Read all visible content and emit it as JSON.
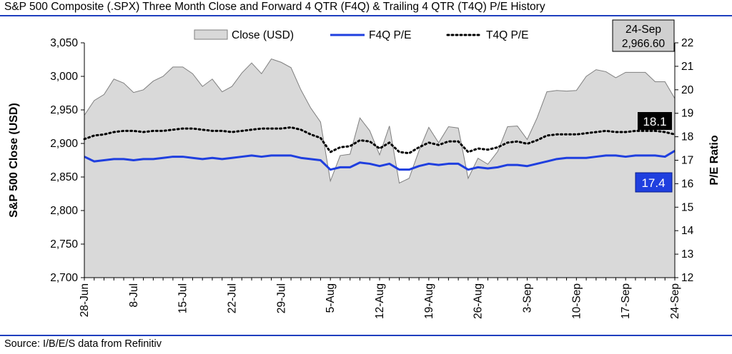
{
  "title": "S&P 500 Composite (.SPX) Three Month Close and Forward 4 QTR (F4Q) & Trailing 4 QTR (T4Q) P/E History",
  "source": "Source: I/B/E/S data from Refinitiv",
  "colors": {
    "close_fill": "#d9d9d9",
    "close_stroke": "#7f7f7f",
    "f4q": "#1f3fdf",
    "t4q": "#000000",
    "rule": "#1f3fbf"
  },
  "callouts": {
    "date_box": {
      "date": "24-Sep",
      "value": "2,966.60"
    },
    "t4q_label": "18.1",
    "f4q_label": "17.4"
  },
  "chart_data": {
    "type": "area+line",
    "xlabel": "",
    "ylabel": "S&P 500 Close (USD)",
    "y2label": "P/E Ratio",
    "ylim": [
      2700,
      3050
    ],
    "y_ticks": [
      2700,
      2750,
      2800,
      2850,
      2900,
      2950,
      3000,
      3050
    ],
    "y_tick_labels": [
      "2,700",
      "2,750",
      "2,800",
      "2,850",
      "2,900",
      "2,950",
      "3,000",
      "3,050"
    ],
    "y2lim": [
      12,
      22
    ],
    "y2_ticks": [
      12,
      13,
      14,
      15,
      16,
      17,
      18,
      19,
      20,
      21,
      22
    ],
    "x_ticks": [
      "28-Jun",
      "8-Jul",
      "15-Jul",
      "22-Jul",
      "29-Jul",
      "5-Aug",
      "12-Aug",
      "19-Aug",
      "26-Aug",
      "3-Sep",
      "10-Sep",
      "17-Sep",
      "24-Sep"
    ],
    "legend": [
      "Close (USD)",
      "F4Q P/E",
      "T4Q P/E"
    ],
    "legend_position": "top",
    "dates": [
      "28-Jun",
      "1-Jul",
      "2-Jul",
      "3-Jul",
      "5-Jul",
      "8-Jul",
      "9-Jul",
      "10-Jul",
      "11-Jul",
      "12-Jul",
      "15-Jul",
      "16-Jul",
      "17-Jul",
      "18-Jul",
      "19-Jul",
      "22-Jul",
      "23-Jul",
      "24-Jul",
      "25-Jul",
      "26-Jul",
      "29-Jul",
      "30-Jul",
      "31-Jul",
      "1-Aug",
      "2-Aug",
      "5-Aug",
      "6-Aug",
      "7-Aug",
      "8-Aug",
      "9-Aug",
      "12-Aug",
      "13-Aug",
      "14-Aug",
      "15-Aug",
      "16-Aug",
      "19-Aug",
      "20-Aug",
      "21-Aug",
      "22-Aug",
      "23-Aug",
      "26-Aug",
      "27-Aug",
      "28-Aug",
      "29-Aug",
      "30-Aug",
      "3-Sep",
      "4-Sep",
      "5-Sep",
      "6-Sep",
      "9-Sep",
      "10-Sep",
      "11-Sep",
      "12-Sep",
      "13-Sep",
      "16-Sep",
      "17-Sep",
      "18-Sep",
      "19-Sep",
      "20-Sep",
      "23-Sep",
      "24-Sep"
    ],
    "series": [
      {
        "name": "Close (USD)",
        "axis": "left",
        "values": [
          2942,
          2964,
          2973,
          2996,
          2990,
          2976,
          2980,
          2993,
          3000,
          3014,
          3014,
          3004,
          2985,
          2996,
          2977,
          2985,
          3005,
          3020,
          3004,
          3026,
          3021,
          3013,
          2980,
          2953,
          2932,
          2844,
          2882,
          2884,
          2938,
          2919,
          2883,
          2926,
          2841,
          2848,
          2889,
          2924,
          2901,
          2925,
          2923,
          2848,
          2878,
          2869,
          2888,
          2925,
          2926,
          2906,
          2938,
          2977,
          2979,
          2978,
          2979,
          3000,
          3010,
          3007,
          2998,
          3006,
          3006,
          3006,
          2992,
          2992,
          2967
        ]
      },
      {
        "name": "F4Q P/E",
        "axis": "right",
        "values": [
          17.15,
          16.95,
          17.0,
          17.05,
          17.05,
          17.0,
          17.05,
          17.05,
          17.1,
          17.15,
          17.15,
          17.1,
          17.05,
          17.1,
          17.05,
          17.1,
          17.15,
          17.2,
          17.15,
          17.2,
          17.2,
          17.2,
          17.1,
          17.05,
          17.0,
          16.6,
          16.7,
          16.7,
          16.9,
          16.85,
          16.75,
          16.85,
          16.6,
          16.6,
          16.75,
          16.85,
          16.8,
          16.85,
          16.85,
          16.6,
          16.7,
          16.65,
          16.7,
          16.8,
          16.8,
          16.75,
          16.85,
          16.95,
          17.05,
          17.1,
          17.1,
          17.1,
          17.15,
          17.2,
          17.2,
          17.15,
          17.2,
          17.2,
          17.2,
          17.15,
          17.4
        ]
      },
      {
        "name": "T4Q P/E",
        "axis": "right",
        "values": [
          17.9,
          18.05,
          18.1,
          18.2,
          18.25,
          18.25,
          18.2,
          18.25,
          18.25,
          18.3,
          18.35,
          18.35,
          18.3,
          18.25,
          18.25,
          18.2,
          18.25,
          18.3,
          18.35,
          18.35,
          18.35,
          18.4,
          18.3,
          18.1,
          17.95,
          17.35,
          17.55,
          17.6,
          17.85,
          17.8,
          17.5,
          17.75,
          17.35,
          17.3,
          17.55,
          17.75,
          17.65,
          17.8,
          17.8,
          17.35,
          17.5,
          17.45,
          17.55,
          17.75,
          17.8,
          17.7,
          17.85,
          18.05,
          18.1,
          18.1,
          18.1,
          18.15,
          18.2,
          18.25,
          18.2,
          18.2,
          18.25,
          18.25,
          18.25,
          18.2,
          18.1
        ]
      }
    ]
  }
}
